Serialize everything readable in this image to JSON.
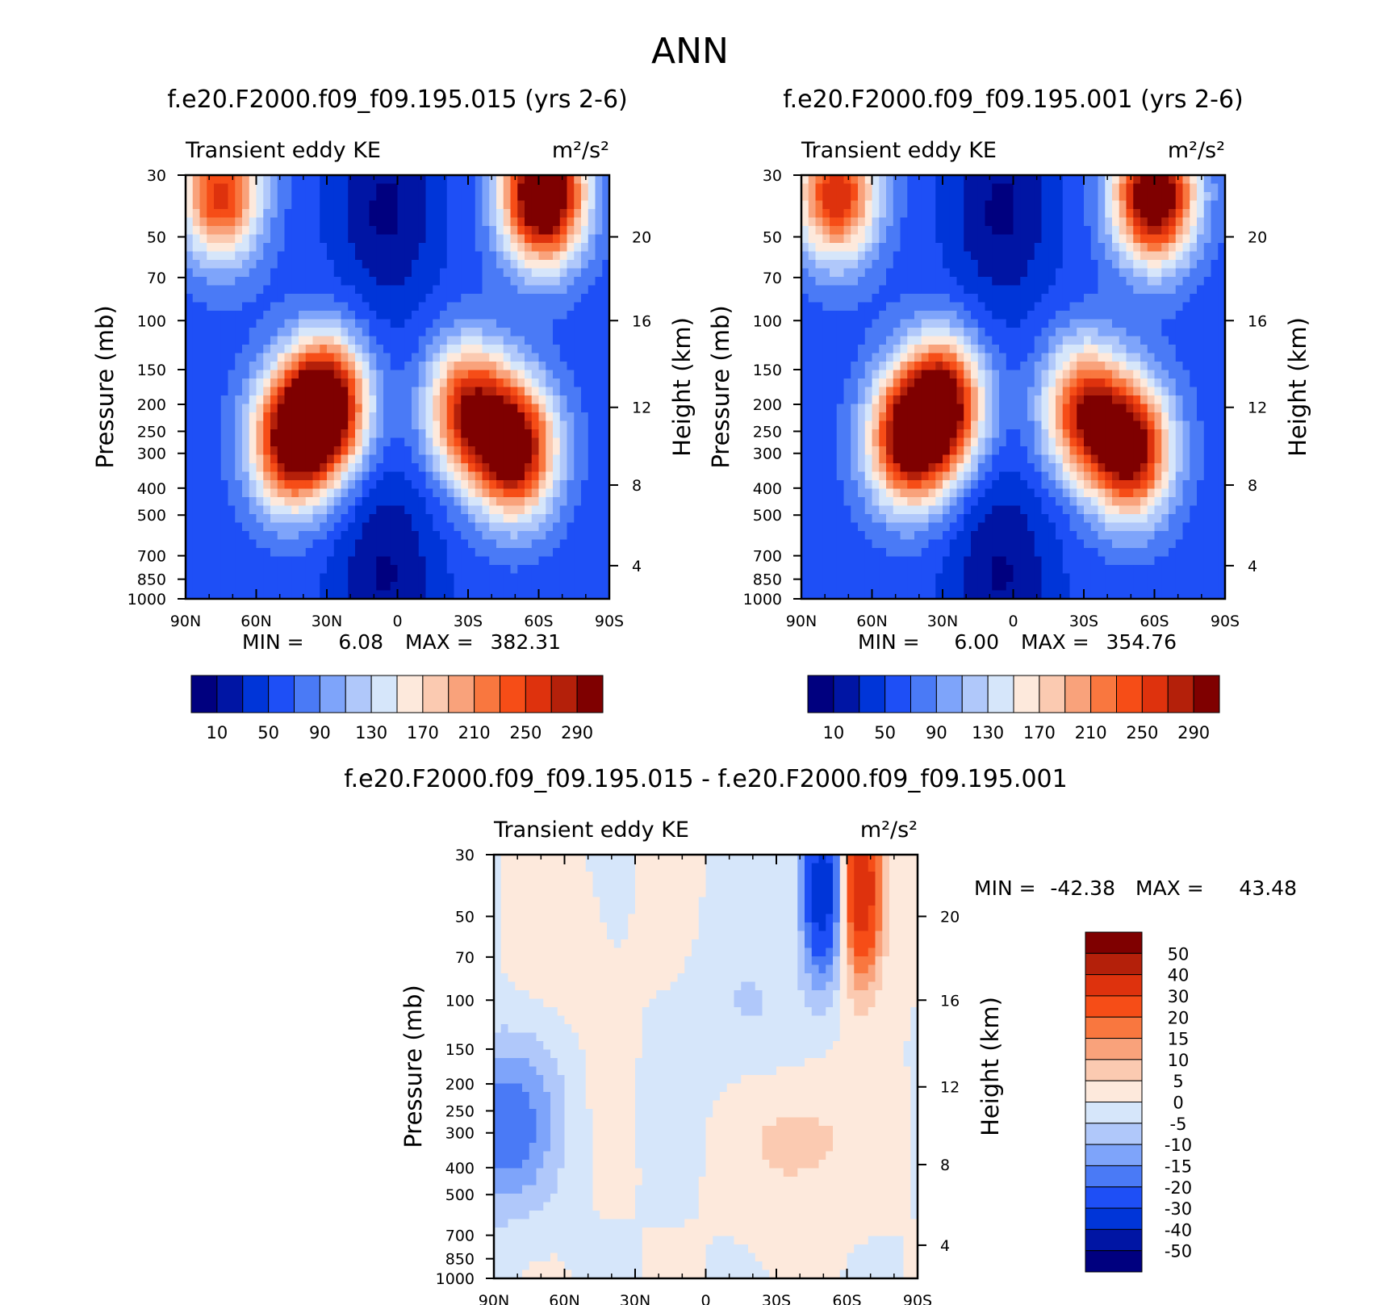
{
  "figure": {
    "title": "ANN",
    "colors": [
      "#00007f",
      "#0015a4",
      "#0035d8",
      "#1e4ff6",
      "#4a7af6",
      "#7ea4fa",
      "#b0c8fa",
      "#d6e6fa",
      "#fde9dc",
      "#fbcab1",
      "#f9a27b",
      "#f9773f",
      "#f64d17",
      "#de320d",
      "#b4200a",
      "#7f0000"
    ]
  },
  "chart_data": [
    {
      "type": "heatmap",
      "title": "f.e20.F2000.f09_f09.195.015 (yrs 2-6)",
      "variable": "Transient eddy KE",
      "units": "m²/s²",
      "ylabel": "Pressure (mb)",
      "ylabel_right": "Height (km)",
      "x_ticks": [
        "90N",
        "60N",
        "30N",
        "0",
        "30S",
        "60S",
        "90S"
      ],
      "y_ticks": [
        "30",
        "50",
        "70",
        "100",
        "150",
        "200",
        "250",
        "300",
        "400",
        "500",
        "700",
        "850",
        "1000"
      ],
      "y2_ticks": [
        "20",
        "16",
        "12",
        "8",
        "4"
      ],
      "y_log_scale": true,
      "stats": {
        "min_label": "MIN =",
        "min": "6.08",
        "max_label": "MAX =",
        "max": "382.31"
      },
      "colorbar": {
        "orientation": "horizontal",
        "labels": [
          "10",
          "50",
          "90",
          "130",
          "170",
          "210",
          "250",
          "290"
        ],
        "levels": [
          10,
          30,
          50,
          70,
          90,
          110,
          130,
          150,
          170,
          190,
          210,
          230,
          250,
          270,
          290
        ]
      },
      "features": [
        {
          "lat": -62,
          "p": 35,
          "value": 380
        },
        {
          "lat": 75,
          "p": 35,
          "value": 260
        },
        {
          "lat": 30,
          "p": 200,
          "value": 330
        },
        {
          "lat": 45,
          "p": 270,
          "value": 300
        },
        {
          "lat": -50,
          "p": 290,
          "value": 320
        },
        {
          "lat": -30,
          "p": 210,
          "value": 270
        },
        {
          "lat": 5,
          "p": 40,
          "value": 6
        },
        {
          "lat": 5,
          "p": 800,
          "value": 8
        }
      ]
    },
    {
      "type": "heatmap",
      "title": "f.e20.F2000.f09_f09.195.001 (yrs 2-6)",
      "variable": "Transient eddy KE",
      "units": "m²/s²",
      "ylabel": "Pressure (mb)",
      "ylabel_right": "Height (km)",
      "x_ticks": [
        "90N",
        "60N",
        "30N",
        "0",
        "30S",
        "60S",
        "90S"
      ],
      "y_ticks": [
        "30",
        "50",
        "70",
        "100",
        "150",
        "200",
        "250",
        "300",
        "400",
        "500",
        "700",
        "850",
        "1000"
      ],
      "y2_ticks": [
        "20",
        "16",
        "12",
        "8",
        "4"
      ],
      "y_log_scale": true,
      "stats": {
        "min_label": "MIN =",
        "min": "6.00",
        "max_label": "MAX =",
        "max": "354.76"
      },
      "colorbar": {
        "orientation": "horizontal",
        "labels": [
          "10",
          "50",
          "90",
          "130",
          "170",
          "210",
          "250",
          "290"
        ],
        "levels": [
          10,
          30,
          50,
          70,
          90,
          110,
          130,
          150,
          170,
          190,
          210,
          230,
          250,
          270,
          290
        ]
      },
      "features": [
        {
          "lat": -60,
          "p": 35,
          "value": 350
        },
        {
          "lat": 75,
          "p": 35,
          "value": 270
        },
        {
          "lat": 30,
          "p": 200,
          "value": 310
        },
        {
          "lat": 45,
          "p": 270,
          "value": 290
        },
        {
          "lat": -50,
          "p": 290,
          "value": 310
        },
        {
          "lat": -30,
          "p": 210,
          "value": 260
        },
        {
          "lat": 5,
          "p": 40,
          "value": 6
        },
        {
          "lat": 5,
          "p": 800,
          "value": 8
        }
      ]
    },
    {
      "type": "heatmap",
      "title": "f.e20.F2000.f09_f09.195.015 - f.e20.F2000.f09_f09.195.001",
      "variable": "Transient eddy KE",
      "units": "m²/s²",
      "ylabel": "Pressure (mb)",
      "ylabel_right": "Height (km)",
      "x_ticks": [
        "90N",
        "60N",
        "30N",
        "0",
        "30S",
        "60S",
        "90S"
      ],
      "y_ticks": [
        "30",
        "50",
        "70",
        "100",
        "150",
        "200",
        "250",
        "300",
        "400",
        "500",
        "700",
        "850",
        "1000"
      ],
      "y2_ticks": [
        "20",
        "16",
        "12",
        "8",
        "4"
      ],
      "y_log_scale": true,
      "stats": {
        "min_label": "MIN =",
        "min": "-42.38",
        "max_label": "MAX =",
        "max": "43.48"
      },
      "colorbar": {
        "orientation": "vertical",
        "labels": [
          "50",
          "40",
          "30",
          "20",
          "15",
          "10",
          "5",
          "0",
          "-5",
          "-10",
          "-15",
          "-20",
          "-30",
          "-40",
          "-50"
        ],
        "levels": [
          -50,
          -40,
          -30,
          -20,
          -15,
          -10,
          -5,
          0,
          5,
          10,
          15,
          20,
          30,
          40,
          50
        ]
      },
      "features": [
        {
          "lat": -66,
          "p": 40,
          "value": 43
        },
        {
          "lat": -50,
          "p": 40,
          "value": -42
        },
        {
          "lat": 88,
          "p": 280,
          "value": -20
        },
        {
          "lat": -40,
          "p": 300,
          "value": 8
        },
        {
          "lat": 60,
          "p": 60,
          "value": 3
        },
        {
          "lat": -20,
          "p": 120,
          "value": -6
        }
      ]
    }
  ]
}
